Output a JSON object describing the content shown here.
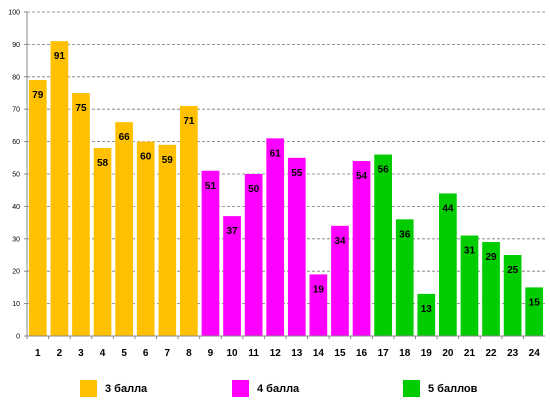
{
  "chart_data": {
    "type": "bar",
    "categories": [
      "1",
      "2",
      "3",
      "4",
      "5",
      "6",
      "7",
      "8",
      "9",
      "10",
      "11",
      "12",
      "13",
      "14",
      "15",
      "16",
      "17",
      "18",
      "19",
      "20",
      "21",
      "22",
      "23",
      "24"
    ],
    "values": [
      79,
      91,
      75,
      58,
      66,
      60,
      59,
      71,
      51,
      37,
      50,
      61,
      55,
      19,
      34,
      54,
      56,
      36,
      13,
      44,
      31,
      29,
      25,
      15
    ],
    "groups": [
      0,
      0,
      0,
      0,
      0,
      0,
      0,
      0,
      1,
      1,
      1,
      1,
      1,
      1,
      1,
      1,
      2,
      2,
      2,
      2,
      2,
      2,
      2,
      2
    ],
    "ylim": [
      0,
      100
    ],
    "yticks": [
      0,
      10,
      20,
      30,
      40,
      50,
      60,
      70,
      80,
      90,
      100
    ],
    "grid": true,
    "legend_position": "bottom",
    "series": [
      {
        "name": "3 балла",
        "color": "#FFC000"
      },
      {
        "name": "4 балла",
        "color": "#FF00FF"
      },
      {
        "name": "5 баллов",
        "color": "#00CC00"
      }
    ]
  }
}
